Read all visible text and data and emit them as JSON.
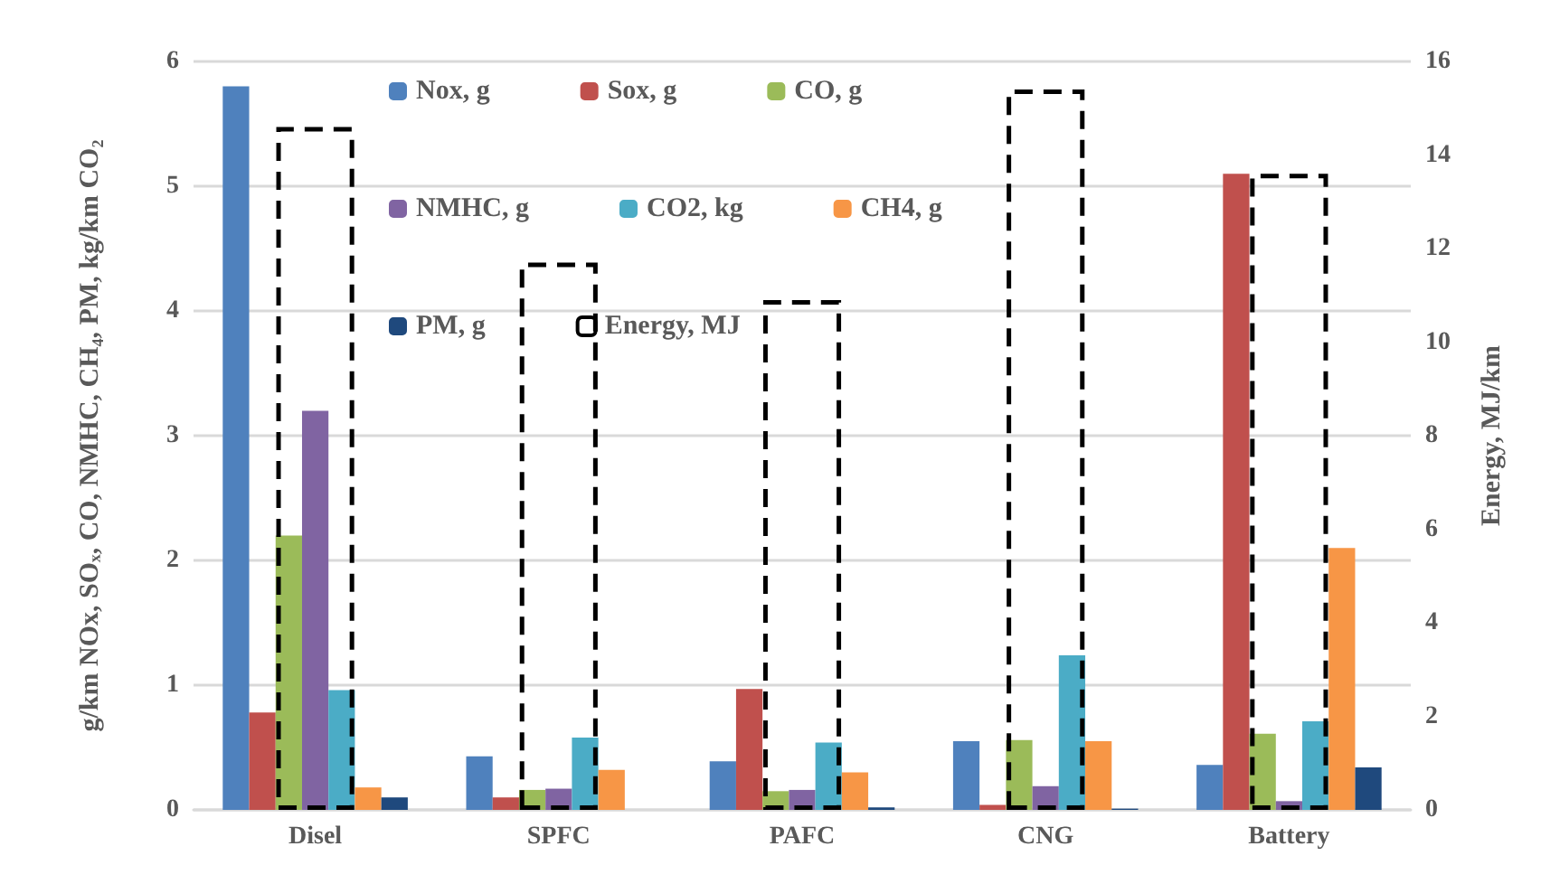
{
  "chart_data": {
    "type": "bar",
    "ylabel": "g/km NOx, SOₓ, CO, NMHC, CH₄, PM, kg/km CO₂",
    "y2label": "Energy, MJ/km",
    "categories": [
      "Disel",
      "SPFC",
      "PAFC",
      "CNG",
      "Battery"
    ],
    "series": [
      {
        "name": "Nox, g",
        "color": "#4f81bd",
        "values": [
          5.8,
          0.43,
          0.39,
          0.55,
          0.36
        ]
      },
      {
        "name": "Sox, g",
        "color": "#c0504d",
        "values": [
          0.78,
          0.1,
          0.97,
          0.04,
          5.1
        ]
      },
      {
        "name": "CO, g",
        "color": "#9bbb59",
        "values": [
          2.2,
          0.16,
          0.15,
          0.56,
          0.61
        ]
      },
      {
        "name": "NMHC, g",
        "color": "#8064a2",
        "values": [
          3.2,
          0.17,
          0.16,
          0.19,
          0.07
        ]
      },
      {
        "name": "CO2, kg",
        "color": "#4bacc6",
        "values": [
          0.96,
          0.58,
          0.54,
          1.24,
          0.71
        ]
      },
      {
        "name": "CH4, g",
        "color": "#f79646",
        "values": [
          0.18,
          0.32,
          0.3,
          0.55,
          2.1
        ]
      },
      {
        "name": "PM, g",
        "color": "#1f497d",
        "values": [
          0.1,
          0,
          0.02,
          0.01,
          0.34
        ]
      },
      {
        "name": "Energy, MJ",
        "color": "#000000",
        "type": "bar",
        "axis": "y2",
        "line_style": "dashed",
        "values": [
          14.6,
          11.7,
          10.9,
          15.4,
          13.6
        ]
      }
    ],
    "ylim": [
      0,
      6
    ],
    "yticks": [
      0,
      1,
      2,
      3,
      4,
      5,
      6
    ],
    "y2lim": [
      0,
      16
    ],
    "y2ticks": [
      0,
      2,
      4,
      6,
      8,
      10,
      12,
      14,
      16
    ],
    "grid": "y",
    "legend": "top"
  }
}
